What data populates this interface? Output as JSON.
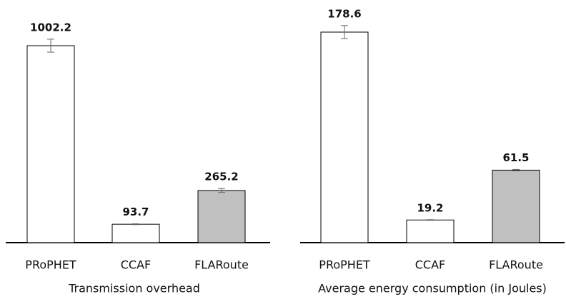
{
  "chart_data": [
    {
      "type": "bar",
      "xlabel": "Transmission overhead",
      "categories": [
        "PRoPHET",
        "CCAF",
        "FLARoute"
      ],
      "values": [
        1002.2,
        93.7,
        265.2
      ],
      "errors": [
        33,
        2,
        10
      ],
      "colors": [
        "#ffffff",
        "#ffffff",
        "#c0c0c0"
      ]
    },
    {
      "type": "bar",
      "xlabel": "Average energy consumption (in Joules)",
      "categories": [
        "PRoPHET",
        "CCAF",
        "FLARoute"
      ],
      "values": [
        178.6,
        19.2,
        61.5
      ],
      "errors": [
        5.5,
        0.3,
        0.6
      ],
      "colors": [
        "#ffffff",
        "#ffffff",
        "#c0c0c0"
      ]
    }
  ]
}
